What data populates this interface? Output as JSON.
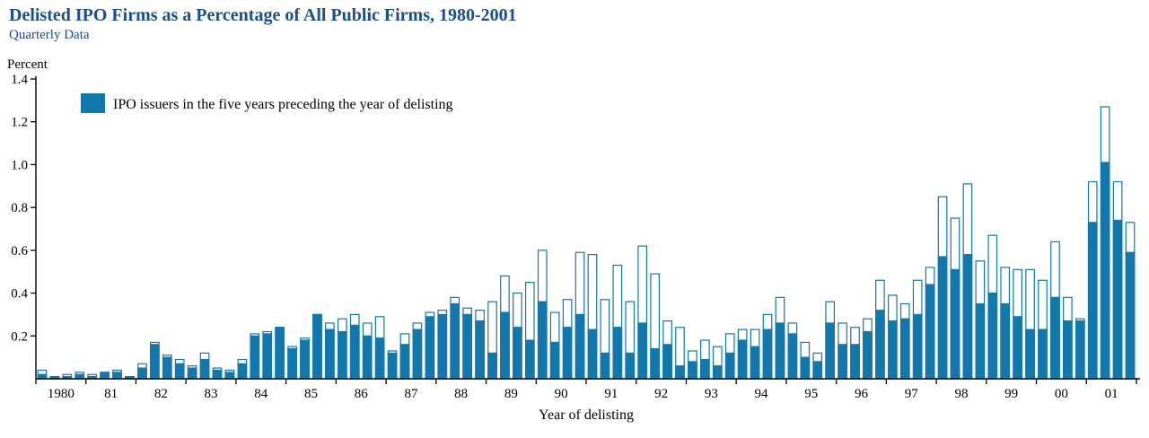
{
  "header": {
    "title": "Delisted IPO Firms as a Percentage of All Public Firms, 1980-2001",
    "subtitle": "Quarterly Data",
    "title_color": "#1a4f8c"
  },
  "chart_data": {
    "type": "bar",
    "title": "Delisted IPO Firms as a Percentage of All Public Firms, 1980-2001",
    "subtitle": "Quarterly Data",
    "ylabel": "Percent",
    "xlabel": "Year of delisting",
    "ylim": [
      0,
      1.4
    ],
    "yticks": [
      0.2,
      0.4,
      0.6,
      0.8,
      1.0,
      1.2,
      1.4
    ],
    "grid": false,
    "legend_position": "top-left-inside",
    "legend": [
      {
        "label": "IPO issuers in the five years preceding the year of delisting",
        "color": "#1278ab"
      }
    ],
    "categories": [
      "1980",
      "81",
      "82",
      "83",
      "84",
      "85",
      "86",
      "87",
      "88",
      "89",
      "90",
      "91",
      "92",
      "93",
      "94",
      "95",
      "96",
      "97",
      "98",
      "99",
      "00",
      "01"
    ],
    "quarters_per_category": 4,
    "series": [
      {
        "name": "total_delisted_bar_outline",
        "values": [
          0.04,
          0.01,
          0.02,
          0.03,
          0.02,
          0.03,
          0.04,
          0.01,
          0.07,
          0.17,
          0.11,
          0.09,
          0.06,
          0.12,
          0.05,
          0.04,
          0.09,
          0.21,
          0.22,
          0.24,
          0.15,
          0.19,
          0.3,
          0.26,
          0.28,
          0.3,
          0.26,
          0.29,
          0.13,
          0.21,
          0.26,
          0.31,
          0.32,
          0.38,
          0.33,
          0.32,
          0.36,
          0.48,
          0.4,
          0.45,
          0.6,
          0.31,
          0.37,
          0.59,
          0.58,
          0.37,
          0.53,
          0.36,
          0.62,
          0.49,
          0.27,
          0.24,
          0.13,
          0.18,
          0.15,
          0.21,
          0.23,
          0.23,
          0.3,
          0.38,
          0.26,
          0.17,
          0.12,
          0.36,
          0.26,
          0.24,
          0.28,
          0.46,
          0.39,
          0.35,
          0.46,
          0.52,
          0.85,
          0.75,
          0.91,
          0.55,
          0.67,
          0.52,
          0.51,
          0.51,
          0.46,
          0.64,
          0.38,
          0.28,
          0.92,
          1.27,
          0.92,
          0.73
        ]
      },
      {
        "name": "IPO issuers in the five years preceding the year of delisting",
        "values": [
          0.02,
          0.01,
          0.01,
          0.02,
          0.01,
          0.03,
          0.03,
          0.01,
          0.05,
          0.16,
          0.1,
          0.07,
          0.05,
          0.09,
          0.04,
          0.03,
          0.07,
          0.2,
          0.21,
          0.24,
          0.14,
          0.18,
          0.3,
          0.23,
          0.22,
          0.25,
          0.2,
          0.19,
          0.12,
          0.16,
          0.23,
          0.29,
          0.3,
          0.35,
          0.3,
          0.27,
          0.12,
          0.31,
          0.24,
          0.18,
          0.36,
          0.17,
          0.24,
          0.3,
          0.23,
          0.12,
          0.24,
          0.12,
          0.26,
          0.14,
          0.16,
          0.06,
          0.08,
          0.09,
          0.06,
          0.12,
          0.18,
          0.15,
          0.23,
          0.26,
          0.21,
          0.1,
          0.08,
          0.26,
          0.16,
          0.16,
          0.22,
          0.32,
          0.27,
          0.28,
          0.3,
          0.44,
          0.57,
          0.51,
          0.58,
          0.35,
          0.4,
          0.35,
          0.29,
          0.23,
          0.23,
          0.38,
          0.27,
          0.27,
          0.73,
          1.01,
          0.74,
          0.59
        ]
      }
    ],
    "colors": {
      "bar_fill": "#1278ab",
      "bar_outline": "#1278ab",
      "bar_empty_fill": "#ffffff",
      "axis": "#000000"
    }
  }
}
